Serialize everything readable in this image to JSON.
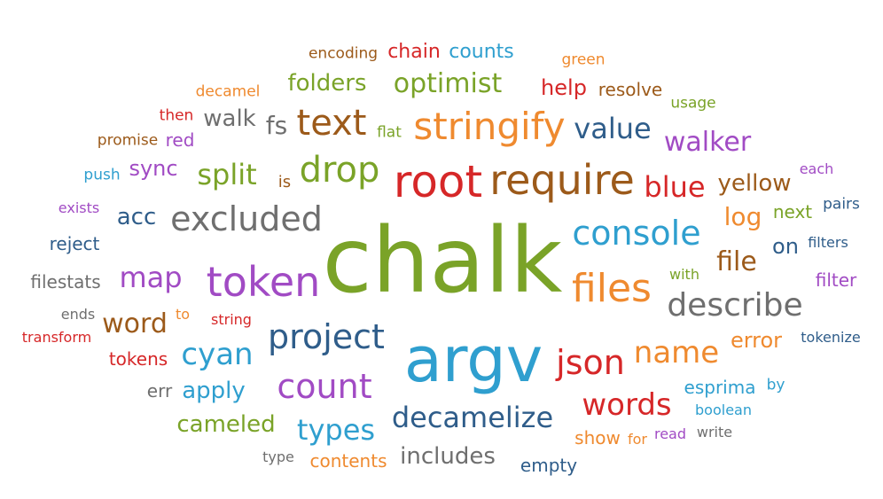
{
  "palette": {
    "red": "#d62728",
    "orange": "#ef8a2f",
    "green": "#7aa328",
    "blue": "#2f9fcf",
    "purple": "#a14bc4",
    "navy": "#2f5d8a",
    "brown": "#9c5a1a",
    "gray": "#6f6f6f"
  },
  "words": [
    {
      "text": "chalk",
      "color": "green"
    },
    {
      "text": "argv",
      "color": "blue"
    },
    {
      "text": "root",
      "color": "red"
    },
    {
      "text": "require",
      "color": "brown"
    },
    {
      "text": "stringify",
      "color": "orange"
    },
    {
      "text": "token",
      "color": "purple"
    },
    {
      "text": "files",
      "color": "orange"
    },
    {
      "text": "console",
      "color": "blue"
    },
    {
      "text": "excluded",
      "color": "gray"
    },
    {
      "text": "project",
      "color": "navy"
    },
    {
      "text": "text",
      "color": "brown"
    },
    {
      "text": "drop",
      "color": "green"
    },
    {
      "text": "count",
      "color": "purple"
    },
    {
      "text": "decamelize",
      "color": "navy"
    },
    {
      "text": "describe",
      "color": "gray"
    },
    {
      "text": "json",
      "color": "red"
    },
    {
      "text": "name",
      "color": "orange"
    },
    {
      "text": "value",
      "color": "navy"
    },
    {
      "text": "walker",
      "color": "purple"
    },
    {
      "text": "blue",
      "color": "red"
    },
    {
      "text": "split",
      "color": "green"
    },
    {
      "text": "map",
      "color": "purple"
    },
    {
      "text": "cyan",
      "color": "blue"
    },
    {
      "text": "words",
      "color": "red"
    },
    {
      "text": "types",
      "color": "blue"
    },
    {
      "text": "optimist",
      "color": "green"
    },
    {
      "text": "folders",
      "color": "green"
    },
    {
      "text": "file",
      "color": "brown"
    },
    {
      "text": "word",
      "color": "brown"
    },
    {
      "text": "includes",
      "color": "gray"
    },
    {
      "text": "log",
      "color": "orange"
    },
    {
      "text": "yellow",
      "color": "brown"
    },
    {
      "text": "fs",
      "color": "gray"
    },
    {
      "text": "acc",
      "color": "navy"
    },
    {
      "text": "cameled",
      "color": "green"
    },
    {
      "text": "apply",
      "color": "blue"
    },
    {
      "text": "error",
      "color": "orange"
    },
    {
      "text": "walk",
      "color": "gray"
    },
    {
      "text": "sync",
      "color": "purple"
    },
    {
      "text": "help",
      "color": "red"
    },
    {
      "text": "empty",
      "color": "navy"
    },
    {
      "text": "on",
      "color": "navy"
    },
    {
      "text": "esprima",
      "color": "blue"
    },
    {
      "text": "chain",
      "color": "red"
    },
    {
      "text": "counts",
      "color": "blue"
    },
    {
      "text": "resolve",
      "color": "brown"
    },
    {
      "text": "next",
      "color": "green"
    },
    {
      "text": "contents",
      "color": "orange"
    },
    {
      "text": "show",
      "color": "orange"
    },
    {
      "text": "tokens",
      "color": "red"
    },
    {
      "text": "reject",
      "color": "navy"
    },
    {
      "text": "filestats",
      "color": "gray"
    },
    {
      "text": "red",
      "color": "purple"
    },
    {
      "text": "err",
      "color": "gray"
    },
    {
      "text": "is",
      "color": "brown"
    },
    {
      "text": "filter",
      "color": "purple"
    },
    {
      "text": "encoding",
      "color": "brown"
    },
    {
      "text": "decamel",
      "color": "orange"
    },
    {
      "text": "then",
      "color": "red"
    },
    {
      "text": "promise",
      "color": "brown"
    },
    {
      "text": "flat",
      "color": "green"
    },
    {
      "text": "green",
      "color": "orange"
    },
    {
      "text": "usage",
      "color": "green"
    },
    {
      "text": "each",
      "color": "purple"
    },
    {
      "text": "push",
      "color": "blue"
    },
    {
      "text": "exists",
      "color": "purple"
    },
    {
      "text": "pairs",
      "color": "navy"
    },
    {
      "text": "filters",
      "color": "navy"
    },
    {
      "text": "with",
      "color": "green"
    },
    {
      "text": "ends",
      "color": "gray"
    },
    {
      "text": "to",
      "color": "orange"
    },
    {
      "text": "string",
      "color": "red"
    },
    {
      "text": "transform",
      "color": "red"
    },
    {
      "text": "tokenize",
      "color": "navy"
    },
    {
      "text": "by",
      "color": "blue"
    },
    {
      "text": "boolean",
      "color": "blue"
    },
    {
      "text": "for",
      "color": "orange"
    },
    {
      "text": "read",
      "color": "purple"
    },
    {
      "text": "write",
      "color": "gray"
    },
    {
      "text": "type",
      "color": "gray"
    }
  ]
}
